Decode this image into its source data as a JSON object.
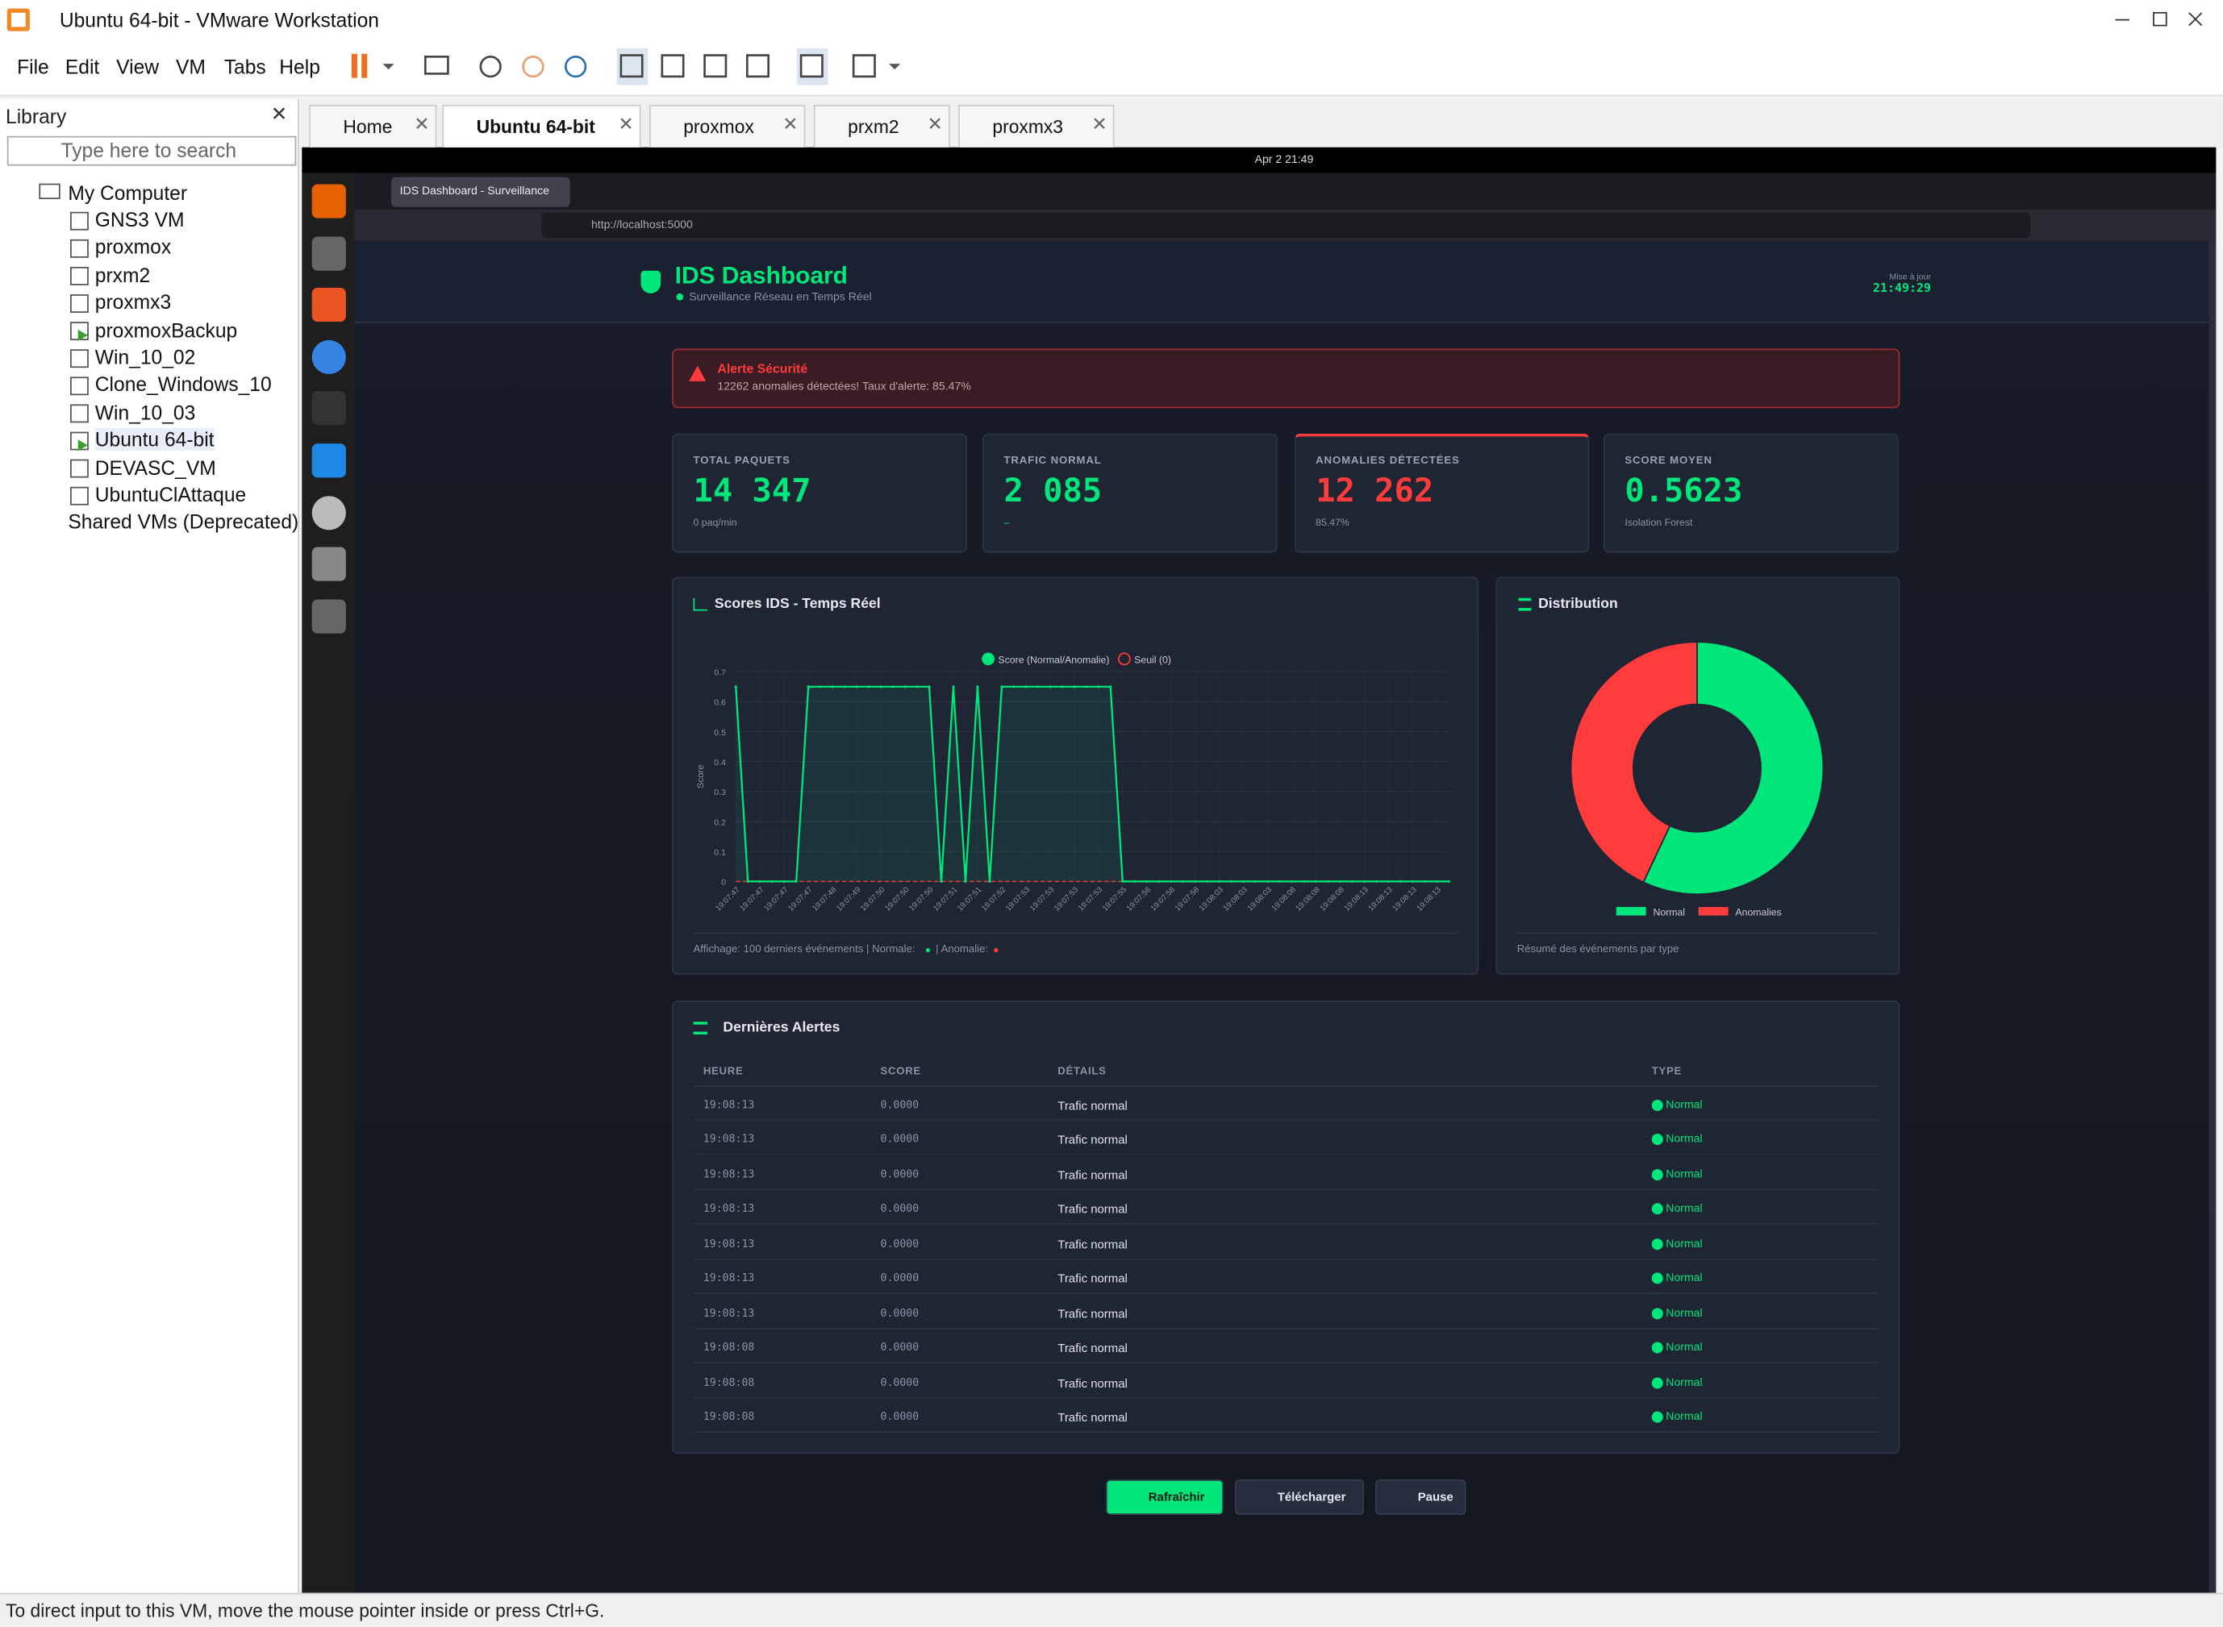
{
  "window": {
    "title": "Ubuntu 64-bit - VMware Workstation",
    "menu": [
      "File",
      "Edit",
      "View",
      "VM",
      "Tabs",
      "Help"
    ]
  },
  "library": {
    "title": "Library",
    "search_placeholder": "Type here to search",
    "root": "My Computer",
    "vms": [
      {
        "name": "GNS3 VM",
        "running": false
      },
      {
        "name": "proxmox",
        "running": false
      },
      {
        "name": "prxm2",
        "running": false
      },
      {
        "name": "proxmx3",
        "running": false
      },
      {
        "name": "proxmoxBackup",
        "running": true
      },
      {
        "name": "Win_10_02",
        "running": false
      },
      {
        "name": "Clone_Windows_10",
        "running": false
      },
      {
        "name": "Win_10_03",
        "running": false
      },
      {
        "name": "Ubuntu 64-bit",
        "running": true
      },
      {
        "name": "DEVASC_VM",
        "running": false
      },
      {
        "name": "UbuntuClAttaque",
        "running": false
      }
    ],
    "shared": "Shared VMs (Deprecated)"
  },
  "tabs": {
    "items": [
      "Home",
      "Ubuntu 64-bit",
      "proxmox",
      "prxm2",
      "proxmx3"
    ],
    "active": 1
  },
  "guest": {
    "clock": "Apr 2  21:49",
    "browser_tab": "IDS Dashboard - Surveillance",
    "url": "http://localhost:5000"
  },
  "dashboard": {
    "header": {
      "title": "IDS Dashboard",
      "subtitle": "Surveillance Réseau en Temps Réel",
      "update_label": "Mise à jour",
      "update_time": "21:49:29"
    },
    "alert": {
      "title": "Alerte Sécurité",
      "message": "12262 anomalies détectées! Taux d'alerte: 85.47%"
    },
    "cards": [
      {
        "label": "TOTAL PAQUETS",
        "value": "14 347",
        "sub": "0 paq/min",
        "color": "#00e67a"
      },
      {
        "label": "TRAFIC NORMAL",
        "value": "2 085",
        "sub": "–",
        "color": "#00e67a"
      },
      {
        "label": "ANOMALIES DÉTECTÉES",
        "value": "12 262",
        "sub": "85.47%",
        "color": "#ff3b3b"
      },
      {
        "label": "SCORE MOYEN",
        "value": "0.5623",
        "sub": "Isolation Forest",
        "color": "#00e67a"
      }
    ],
    "chart": {
      "type": "line",
      "title": "Scores IDS - Temps Réel",
      "y_label": "Score",
      "series_name": "Score (Normal/Anomalie)",
      "threshold_name": "Seuil (0)",
      "threshold": 0,
      "color": "#00e67a",
      "threshold_color": "#ff3b3b",
      "ylim": [
        0,
        0.7
      ],
      "yticks": [
        0,
        0.1,
        0.2,
        0.3,
        0.4,
        0.5,
        0.6,
        0.7
      ],
      "categories": [
        "19:07:47",
        null,
        "19:07:47",
        null,
        "19:07:47",
        null,
        "19:07:47",
        null,
        "19:07:48",
        null,
        "19:07:49",
        null,
        "19:07:50",
        null,
        "19:07:50",
        null,
        "19:07:50",
        null,
        "19:07:51",
        null,
        "19:07:51",
        null,
        "19:07:52",
        null,
        "19:07:53",
        null,
        "19:07:53",
        null,
        "19:07:53",
        null,
        "19:07:53",
        null,
        "19:07:55",
        null,
        "19:07:56",
        null,
        "19:07:58",
        null,
        "19:07:58",
        null,
        "19:08:03",
        null,
        "19:08:03",
        null,
        "19:08:03",
        null,
        "19:08:08",
        null,
        "19:08:08",
        null,
        "19:08:08",
        null,
        "19:08:13",
        null,
        "19:08:13",
        null,
        "19:08:13",
        null,
        "19:08:13",
        null
      ],
      "values": [
        0.65,
        0,
        0,
        0,
        0,
        0,
        0.65,
        0.65,
        0.65,
        0.65,
        0.65,
        0.65,
        0.65,
        0.65,
        0.65,
        0.65,
        0.65,
        0,
        0.65,
        0,
        0.65,
        0,
        0.65,
        0.65,
        0.65,
        0.65,
        0.65,
        0.65,
        0.65,
        0.65,
        0.65,
        0.65,
        0,
        0,
        0,
        0,
        0,
        0,
        0,
        0,
        0,
        0,
        0,
        0,
        0,
        0,
        0,
        0,
        0,
        0,
        0,
        0,
        0,
        0,
        0,
        0,
        0,
        0,
        0,
        0
      ],
      "footer_text": "Affichage: 100 derniers événements | Normale:",
      "footer_text2": "| Anomalie:"
    },
    "distribution": {
      "type": "pie",
      "title": "Distribution",
      "categories": [
        "Normal",
        "Anomalies"
      ],
      "values": [
        57,
        43
      ],
      "colors": [
        "#00e67a",
        "#ff3b3b"
      ],
      "footer": "Résumé des événements par type"
    },
    "alerts": {
      "title": "Dernières Alertes",
      "columns": [
        "HEURE",
        "SCORE",
        "DÉTAILS",
        "TYPE"
      ],
      "rows": [
        [
          "19:08:13",
          "0.0000",
          "Trafic normal",
          "Normal"
        ],
        [
          "19:08:13",
          "0.0000",
          "Trafic normal",
          "Normal"
        ],
        [
          "19:08:13",
          "0.0000",
          "Trafic normal",
          "Normal"
        ],
        [
          "19:08:13",
          "0.0000",
          "Trafic normal",
          "Normal"
        ],
        [
          "19:08:13",
          "0.0000",
          "Trafic normal",
          "Normal"
        ],
        [
          "19:08:13",
          "0.0000",
          "Trafic normal",
          "Normal"
        ],
        [
          "19:08:13",
          "0.0000",
          "Trafic normal",
          "Normal"
        ],
        [
          "19:08:08",
          "0.0000",
          "Trafic normal",
          "Normal"
        ],
        [
          "19:08:08",
          "0.0000",
          "Trafic normal",
          "Normal"
        ],
        [
          "19:08:08",
          "0.0000",
          "Trafic normal",
          "Normal"
        ]
      ]
    },
    "buttons": [
      "Rafraîchir",
      "Télécharger",
      "Pause"
    ]
  },
  "status": "To direct input to this VM, move the mouse pointer inside or press Ctrl+G."
}
